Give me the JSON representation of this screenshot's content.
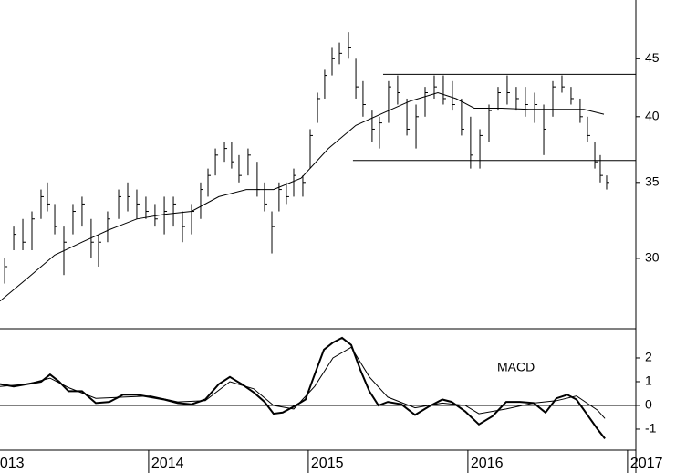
{
  "chart_data": [
    {
      "type": "ohlc",
      "x": [
        2013.098,
        2013.155,
        2013.212,
        2013.269,
        2013.326,
        2013.366,
        2013.412,
        2013.469,
        2013.526,
        2013.583,
        2013.64,
        2013.686,
        2013.743,
        2013.812,
        2013.869,
        2013.926,
        2013.983,
        2014.04,
        2014.098,
        2014.155,
        2014.212,
        2014.269,
        2014.326,
        2014.372,
        2014.418,
        2014.475,
        2014.52,
        2014.566,
        2014.623,
        2014.68,
        2014.726,
        2014.772,
        2014.817,
        2014.863,
        2014.909,
        2014.966,
        2015.012,
        2015.058,
        2015.103,
        2015.149,
        2015.195,
        2015.252,
        2015.298,
        2015.343,
        2015.4,
        2015.446,
        2015.503,
        2015.56,
        2015.618,
        2015.675,
        2015.732,
        2015.789,
        2015.846,
        2015.903,
        2015.96,
        2016.017,
        2016.075,
        2016.132,
        2016.189,
        2016.246,
        2016.303,
        2016.36,
        2016.418,
        2016.475,
        2016.532,
        2016.589,
        2016.646,
        2016.703,
        2016.749,
        2016.795,
        2016.829,
        2016.869
      ],
      "high": [
        30,
        32,
        32.5,
        33,
        34.5,
        35,
        33.5,
        32,
        33.5,
        34,
        32.5,
        31.5,
        33,
        34.5,
        35,
        34.5,
        34,
        33.5,
        34,
        34,
        33,
        33.5,
        35,
        36,
        37.5,
        38,
        38,
        37,
        37.5,
        36.5,
        35,
        33,
        35,
        35,
        36,
        35.5,
        39,
        42,
        44,
        46,
        46.5,
        47.5,
        45,
        43,
        40.5,
        40,
        43,
        43.5,
        41.5,
        41,
        42.5,
        43.5,
        43.5,
        43,
        41.5,
        40,
        39,
        41,
        42.5,
        43.5,
        42.5,
        42.5,
        42,
        41,
        43,
        43.5,
        42.5,
        41.5,
        40,
        38,
        37,
        35.5
      ],
      "low": [
        28.5,
        30.5,
        30.5,
        30.5,
        32.5,
        33,
        31.5,
        29,
        31.5,
        32,
        30,
        29.5,
        31,
        32.5,
        33,
        32.5,
        32.5,
        32,
        31.5,
        32,
        31,
        31.5,
        32.5,
        34,
        35.5,
        36.5,
        36,
        35,
        35.5,
        34,
        33,
        30.3,
        33,
        33.5,
        34,
        34,
        36,
        39.5,
        41.5,
        43.5,
        44.5,
        45,
        41.5,
        40,
        38,
        37.5,
        39.5,
        41,
        38.5,
        37.5,
        40,
        41.5,
        41,
        40.5,
        38.5,
        36,
        36,
        38,
        40.5,
        41,
        40.5,
        40,
        39.5,
        37,
        40,
        42,
        41,
        39.5,
        38,
        36,
        35,
        34.5
      ],
      "close": [
        29.5,
        31.5,
        31,
        32.5,
        34,
        33.5,
        32,
        31,
        33,
        33.5,
        31,
        31,
        32.5,
        34,
        34,
        33.5,
        33,
        32.5,
        33,
        33.5,
        32,
        33,
        34.5,
        35.5,
        37,
        37.5,
        36.5,
        35.5,
        37,
        34.5,
        33.5,
        32,
        34.5,
        34,
        35.5,
        35,
        38.5,
        41.5,
        43.5,
        45,
        45.5,
        46,
        42.5,
        41,
        39,
        39.5,
        42.5,
        42,
        39,
        40,
        42,
        42.5,
        41.5,
        41,
        39,
        37,
        38.5,
        40.5,
        42,
        42,
        41.5,
        41,
        41,
        39,
        42.5,
        42.5,
        41.5,
        40,
        38.5,
        36.5,
        35.5,
        35
      ],
      "color": "#000000",
      "moving_average": {
        "x": [
          2013.069,
          2013.24,
          2013.412,
          2013.583,
          2013.755,
          2013.926,
          2014.098,
          2014.269,
          2014.44,
          2014.612,
          2014.783,
          2014.955,
          2015.126,
          2015.298,
          2015.469,
          2015.64,
          2015.812,
          2015.926,
          2016.04,
          2016.212,
          2016.383,
          2016.555,
          2016.726,
          2016.852
        ],
        "values": [
          27.5,
          28.8,
          30.2,
          31,
          31.8,
          32.5,
          32.8,
          33,
          34,
          34.5,
          34.5,
          35.3,
          37.5,
          39.3,
          40.3,
          41.3,
          42,
          41.5,
          40.7,
          40.7,
          40.6,
          40.6,
          40.6,
          40.2
        ]
      },
      "levels": [
        {
          "start": 2015.469,
          "value": 43.6
        },
        {
          "start": 2015.28,
          "value": 36.6
        }
      ],
      "xlim": [
        2013.069,
        2017.052
      ],
      "ylim": [
        26.1,
        50.7
      ],
      "yticks": [
        30,
        35,
        40,
        45
      ],
      "log_scale": true
    },
    {
      "type": "line",
      "label": "MACD",
      "series": [
        {
          "color": "#000000",
          "width": 2,
          "x": [
            2013.069,
            2013.155,
            2013.24,
            2013.326,
            2013.383,
            2013.44,
            2013.498,
            2013.583,
            2013.669,
            2013.755,
            2013.84,
            2013.926,
            2014.012,
            2014.098,
            2014.183,
            2014.269,
            2014.355,
            2014.44,
            2014.509,
            2014.583,
            2014.658,
            2014.726,
            2014.783,
            2014.84,
            2014.909,
            2014.983,
            2015.04,
            2015.098,
            2015.155,
            2015.212,
            2015.269,
            2015.326,
            2015.383,
            2015.44,
            2015.498,
            2015.583,
            2015.669,
            2015.755,
            2015.84,
            2015.898,
            2015.983,
            2016.069,
            2016.155,
            2016.24,
            2016.326,
            2016.412,
            2016.486,
            2016.555,
            2016.623,
            2016.68,
            2016.738,
            2016.812,
            2016.858
          ],
          "values": [
            0.9,
            0.8,
            0.9,
            1.0,
            1.3,
            1.0,
            0.6,
            0.6,
            0.1,
            0.15,
            0.45,
            0.45,
            0.35,
            0.25,
            0.1,
            0.05,
            0.25,
            0.9,
            1.2,
            0.9,
            0.55,
            0.15,
            -0.35,
            -0.3,
            -0.05,
            0.25,
            1.3,
            2.35,
            2.65,
            2.85,
            2.55,
            1.5,
            0.6,
            0,
            0.15,
            0.05,
            -0.4,
            -0.05,
            0.25,
            0.15,
            -0.25,
            -0.8,
            -0.45,
            0.15,
            0.15,
            0.1,
            -0.3,
            0.3,
            0.45,
            0.25,
            -0.3,
            -1.0,
            -1.4
          ]
        },
        {
          "color": "#000000",
          "width": 1,
          "x": [
            2013.069,
            2013.24,
            2013.383,
            2013.498,
            2013.669,
            2013.84,
            2014.012,
            2014.183,
            2014.355,
            2014.509,
            2014.658,
            2014.783,
            2014.909,
            2015.04,
            2015.155,
            2015.269,
            2015.383,
            2015.498,
            2015.669,
            2015.84,
            2015.983,
            2016.069,
            2016.24,
            2016.412,
            2016.555,
            2016.68,
            2016.812,
            2016.858
          ],
          "values": [
            0.8,
            0.9,
            1.15,
            0.75,
            0.3,
            0.35,
            0.4,
            0.15,
            0.2,
            1.0,
            0.7,
            0,
            -0.15,
            0.8,
            2.0,
            2.45,
            1.2,
            0.35,
            -0.1,
            0.1,
            0,
            -0.35,
            -0.15,
            0.1,
            0.2,
            0.4,
            -0.2,
            -0.55
          ]
        }
      ],
      "zero_line": true,
      "xlim": [
        2013.069,
        2017.052
      ],
      "xticks": [
        2013,
        2014,
        2015,
        2016,
        2017
      ],
      "ylim": [
        -1.77,
        3.23
      ],
      "yticks": [
        -1,
        0,
        1,
        2
      ]
    }
  ]
}
